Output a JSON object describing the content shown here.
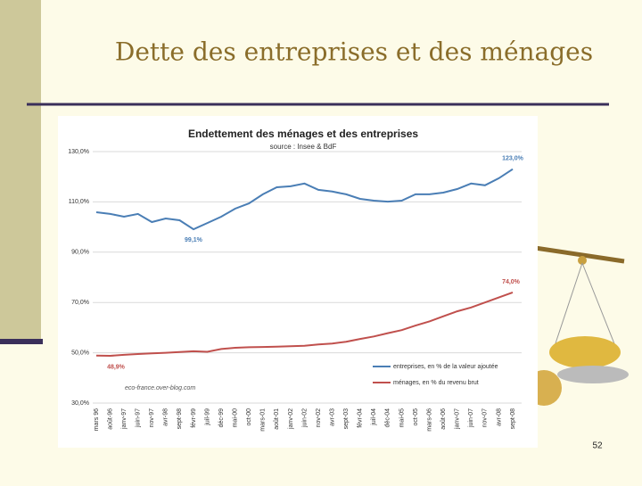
{
  "slide": {
    "title": "Dette des entreprises et des ménages",
    "page_number": "52"
  },
  "chart_data": {
    "type": "line",
    "title": "Endettement des ménages et des entreprises",
    "subtitle": "source : Insee & BdF",
    "watermark": "eco-france.over-blog.com",
    "annotations": [
      "123,0%",
      "99,1%",
      "74,0%",
      "48,9%"
    ],
    "categories": [
      "mars 96",
      "août-96",
      "janv-97",
      "juin-97",
      "nov-97",
      "avr-98",
      "sept-98",
      "févr-99",
      "juil-99",
      "déc-99",
      "mai-00",
      "oct-00",
      "mars-01",
      "août-01",
      "janv-02",
      "juin-02",
      "nov-02",
      "avr-03",
      "sept-03",
      "févr-04",
      "juil-04",
      "déc-04",
      "mai-05",
      "oct-05",
      "mars-06",
      "août-06",
      "janv-07",
      "juin-07",
      "nov-07",
      "avr-08",
      "sept-08"
    ],
    "series": [
      {
        "name": "entreprises, en % de la valeur ajoutée",
        "color": "#4a7eb5",
        "values": [
          105.9,
          105.2,
          104.1,
          105.2,
          102,
          103.4,
          102.7,
          99.1,
          101.6,
          104.1,
          107.3,
          109.4,
          113,
          115.8,
          116.2,
          117.3,
          114.8,
          114.1,
          113,
          111.2,
          110.5,
          110.1,
          110.5,
          113,
          113,
          113.7,
          115.1,
          117.3,
          116.6,
          119.4,
          123.0
        ]
      },
      {
        "name": "ménages, en % du revenu brut",
        "color": "#c0504d",
        "values": [
          48.9,
          48.8,
          49.2,
          49.5,
          49.8,
          50,
          50.3,
          50.6,
          50.4,
          51.5,
          52,
          52.2,
          52.3,
          52.4,
          52.6,
          52.8,
          53.3,
          53.7,
          54.4,
          55.5,
          56.5,
          57.8,
          59,
          60.8,
          62.5,
          64.5,
          66.5,
          68,
          70,
          72,
          74.0
        ]
      }
    ],
    "ylim": [
      30,
      130
    ],
    "yticks": [
      {
        "value": 30,
        "label": "30,0%"
      },
      {
        "value": 50,
        "label": "50,0%"
      },
      {
        "value": 70,
        "label": "70,0%"
      },
      {
        "value": 90,
        "label": "90,0%"
      },
      {
        "value": 110,
        "label": "110,0%"
      },
      {
        "value": 130,
        "label": "130,0%"
      }
    ],
    "grid": true
  }
}
